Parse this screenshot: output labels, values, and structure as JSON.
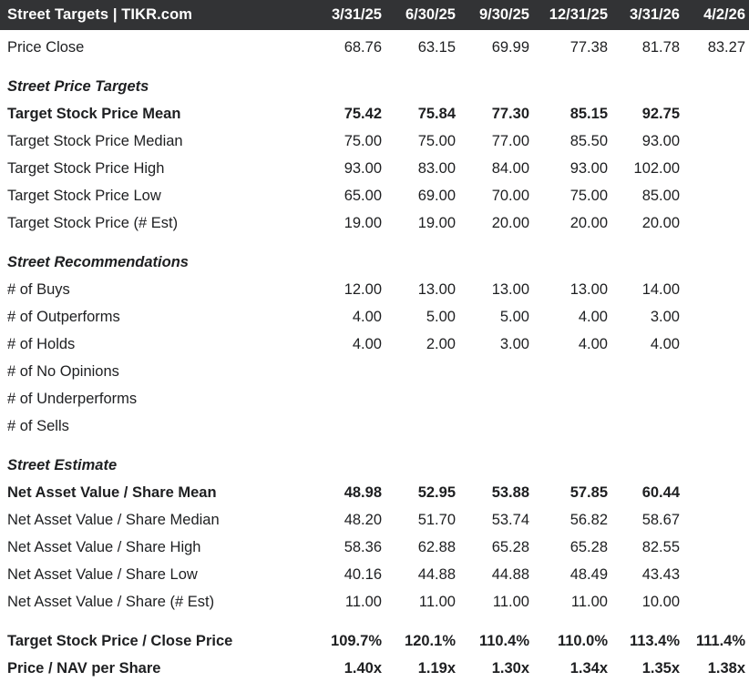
{
  "header": {
    "title": "Street Targets | TIKR.com"
  },
  "chart_data": {
    "type": "table",
    "title": "Street Targets | TIKR.com",
    "columns": [
      "3/31/25",
      "6/30/25",
      "9/30/25",
      "12/31/25",
      "3/31/26",
      "4/2/26"
    ],
    "rows": [
      {
        "label": "Price Close",
        "style": "normal",
        "gap_before": false,
        "values": [
          "68.76",
          "63.15",
          "69.99",
          "77.38",
          "81.78",
          "83.27"
        ]
      },
      {
        "label": "Street Price Targets",
        "style": "section",
        "gap_before": true,
        "values": [
          "",
          "",
          "",
          "",
          "",
          ""
        ]
      },
      {
        "label": "Target Stock Price Mean",
        "style": "bold",
        "gap_before": false,
        "values": [
          "75.42",
          "75.84",
          "77.30",
          "85.15",
          "92.75",
          ""
        ]
      },
      {
        "label": "Target Stock Price Median",
        "style": "normal",
        "gap_before": false,
        "values": [
          "75.00",
          "75.00",
          "77.00",
          "85.50",
          "93.00",
          ""
        ]
      },
      {
        "label": "Target Stock Price High",
        "style": "normal",
        "gap_before": false,
        "values": [
          "93.00",
          "83.00",
          "84.00",
          "93.00",
          "102.00",
          ""
        ]
      },
      {
        "label": "Target Stock Price Low",
        "style": "normal",
        "gap_before": false,
        "values": [
          "65.00",
          "69.00",
          "70.00",
          "75.00",
          "85.00",
          ""
        ]
      },
      {
        "label": "Target Stock Price (# Est)",
        "style": "normal",
        "gap_before": false,
        "values": [
          "19.00",
          "19.00",
          "20.00",
          "20.00",
          "20.00",
          ""
        ]
      },
      {
        "label": "Street Recommendations",
        "style": "section",
        "gap_before": true,
        "values": [
          "",
          "",
          "",
          "",
          "",
          ""
        ]
      },
      {
        "label": "# of Buys",
        "style": "normal",
        "gap_before": false,
        "values": [
          "12.00",
          "13.00",
          "13.00",
          "13.00",
          "14.00",
          ""
        ]
      },
      {
        "label": "# of Outperforms",
        "style": "normal",
        "gap_before": false,
        "values": [
          "4.00",
          "5.00",
          "5.00",
          "4.00",
          "3.00",
          ""
        ]
      },
      {
        "label": "# of Holds",
        "style": "normal",
        "gap_before": false,
        "values": [
          "4.00",
          "2.00",
          "3.00",
          "4.00",
          "4.00",
          ""
        ]
      },
      {
        "label": "# of No Opinions",
        "style": "normal",
        "gap_before": false,
        "values": [
          "",
          "",
          "",
          "",
          "",
          ""
        ]
      },
      {
        "label": "# of Underperforms",
        "style": "normal",
        "gap_before": false,
        "values": [
          "",
          "",
          "",
          "",
          "",
          ""
        ]
      },
      {
        "label": "# of Sells",
        "style": "normal",
        "gap_before": false,
        "values": [
          "",
          "",
          "",
          "",
          "",
          ""
        ]
      },
      {
        "label": "Street Estimate",
        "style": "section",
        "gap_before": true,
        "values": [
          "",
          "",
          "",
          "",
          "",
          ""
        ]
      },
      {
        "label": "Net Asset Value / Share Mean",
        "style": "bold",
        "gap_before": false,
        "values": [
          "48.98",
          "52.95",
          "53.88",
          "57.85",
          "60.44",
          ""
        ]
      },
      {
        "label": "Net Asset Value / Share Median",
        "style": "normal",
        "gap_before": false,
        "values": [
          "48.20",
          "51.70",
          "53.74",
          "56.82",
          "58.67",
          ""
        ]
      },
      {
        "label": "Net Asset Value / Share High",
        "style": "normal",
        "gap_before": false,
        "values": [
          "58.36",
          "62.88",
          "65.28",
          "65.28",
          "82.55",
          ""
        ]
      },
      {
        "label": "Net Asset Value / Share Low",
        "style": "normal",
        "gap_before": false,
        "values": [
          "40.16",
          "44.88",
          "44.88",
          "48.49",
          "43.43",
          ""
        ]
      },
      {
        "label": "Net Asset Value / Share (# Est)",
        "style": "normal",
        "gap_before": false,
        "values": [
          "11.00",
          "11.00",
          "11.00",
          "11.00",
          "10.00",
          ""
        ]
      },
      {
        "label": "Target Stock Price / Close Price",
        "style": "bold",
        "gap_before": true,
        "values": [
          "109.7%",
          "120.1%",
          "110.4%",
          "110.0%",
          "113.4%",
          "111.4%"
        ]
      },
      {
        "label": "Price / NAV per Share",
        "style": "bold",
        "gap_before": false,
        "values": [
          "1.40x",
          "1.19x",
          "1.30x",
          "1.34x",
          "1.35x",
          "1.38x"
        ]
      }
    ]
  },
  "colors": {
    "header_background": "#323335",
    "header_text": "#ffffff",
    "body_text": "#1e1f21",
    "page_background": "#ffffff"
  }
}
